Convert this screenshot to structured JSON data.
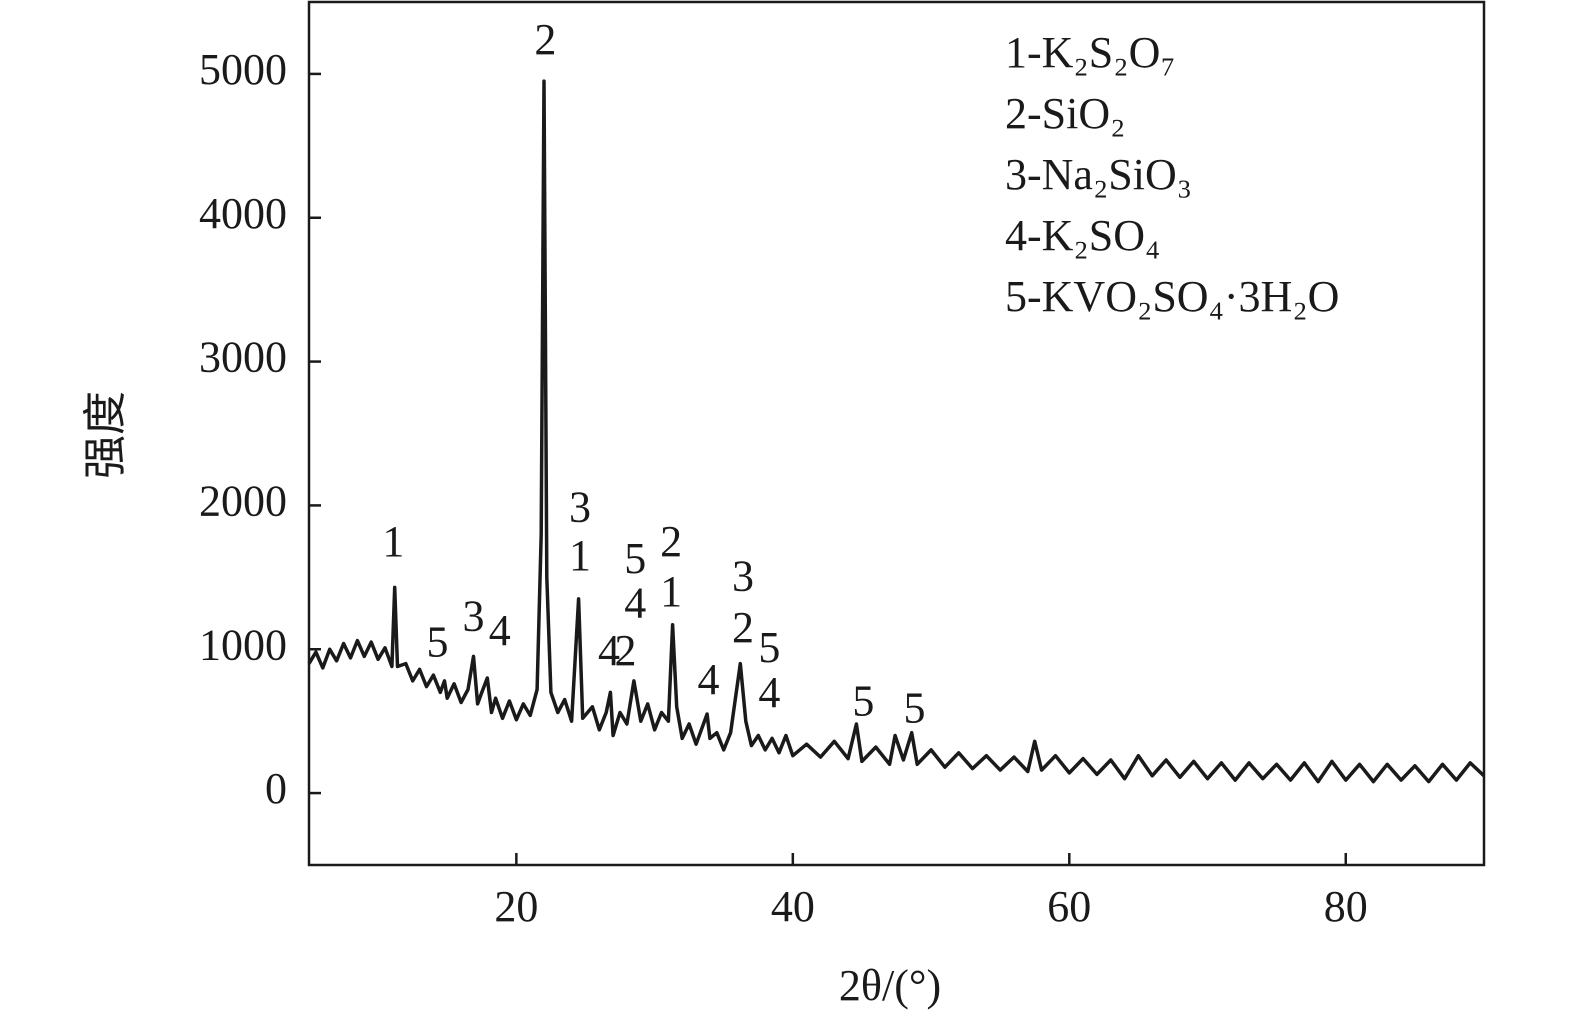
{
  "chart_data": {
    "type": "line",
    "x_label": "2θ/(°)",
    "y_label": "强度",
    "x": [
      5.0,
      5.5,
      6.0,
      6.5,
      7.0,
      7.5,
      8.0,
      8.5,
      9.0,
      9.5,
      10.0,
      10.5,
      11.0,
      11.2,
      11.4,
      12.0,
      12.5,
      13.0,
      13.5,
      14.0,
      14.5,
      14.8,
      15.0,
      15.5,
      16.0,
      16.5,
      16.9,
      17.2,
      17.5,
      17.9,
      18.2,
      18.5,
      19.0,
      19.5,
      20.0,
      20.5,
      21.0,
      21.5,
      21.8,
      22.0,
      22.2,
      22.5,
      23.0,
      23.5,
      24.0,
      24.5,
      24.8,
      25.5,
      26.0,
      26.5,
      26.8,
      27.0,
      27.5,
      28.0,
      28.5,
      29.0,
      29.5,
      30.0,
      30.5,
      31.0,
      31.3,
      31.6,
      32.0,
      32.5,
      33.0,
      33.8,
      34.0,
      34.5,
      35.0,
      35.5,
      36.2,
      36.6,
      37.0,
      37.5,
      38.0,
      38.5,
      39.0,
      39.5,
      40.0,
      41.0,
      42.0,
      43.0,
      44.0,
      44.6,
      45.0,
      46.0,
      47.0,
      47.4,
      48.0,
      48.6,
      49.0,
      50.0,
      51.0,
      52.0,
      53.0,
      54.0,
      55.0,
      56.0,
      57.0,
      57.5,
      58.0,
      59.0,
      60.0,
      61.0,
      62.0,
      63.0,
      64.0,
      65.0,
      66.0,
      67.0,
      68.0,
      69.0,
      70.0,
      71.0,
      72.0,
      73.0,
      74.0,
      75.0,
      76.0,
      77.0,
      78.0,
      79.0,
      80.0,
      81.0,
      82.0,
      83.0,
      84.0,
      85.0,
      86.0,
      87.0,
      88.0,
      89.0,
      90.0
    ],
    "values": [
      900,
      980,
      870,
      1000,
      920,
      1040,
      940,
      1060,
      950,
      1050,
      930,
      1010,
      880,
      1430,
      880,
      900,
      780,
      860,
      740,
      820,
      700,
      780,
      660,
      760,
      630,
      720,
      950,
      620,
      700,
      800,
      560,
      660,
      520,
      640,
      510,
      620,
      540,
      720,
      1800,
      4950,
      1500,
      700,
      560,
      650,
      500,
      1350,
      520,
      600,
      440,
      560,
      700,
      400,
      560,
      480,
      780,
      500,
      620,
      440,
      560,
      500,
      1170,
      600,
      380,
      480,
      340,
      550,
      380,
      420,
      300,
      420,
      900,
      500,
      330,
      400,
      300,
      380,
      280,
      400,
      260,
      340,
      250,
      360,
      240,
      480,
      220,
      320,
      200,
      400,
      230,
      420,
      200,
      300,
      180,
      280,
      170,
      260,
      160,
      250,
      150,
      360,
      160,
      260,
      140,
      240,
      130,
      230,
      100,
      260,
      120,
      230,
      110,
      220,
      100,
      210,
      90,
      210,
      100,
      200,
      90,
      210,
      80,
      220,
      90,
      200,
      80,
      200,
      90,
      190,
      80,
      200,
      90,
      210,
      120
    ],
    "color": "#1a1a1a",
    "xlim": [
      5,
      90
    ],
    "ylim": [
      -500,
      5500
    ],
    "xticks": [
      20,
      40,
      60,
      80
    ],
    "yticks": [
      0,
      1000,
      2000,
      3000,
      4000,
      5000
    ],
    "grid": false,
    "legend": [
      "1-K₂S₂O₇",
      "2-SiO₂",
      "3-Na₂SiO₃",
      "4-K₂SO₄",
      "5-KVO₂SO₄·3H₂O"
    ],
    "legend_loc": "upper right",
    "annotations": [
      {
        "text": "1",
        "x": 11.1,
        "y": 1720
      },
      {
        "text": "5",
        "x": 14.3,
        "y": 1020
      },
      {
        "text": "3",
        "x": 16.9,
        "y": 1200
      },
      {
        "text": "4",
        "x": 18.8,
        "y": 1100
      },
      {
        "text": "2",
        "x": 22.1,
        "y": 5210
      },
      {
        "text": "3",
        "x": 24.6,
        "y": 1960
      },
      {
        "text": "1",
        "x": 24.6,
        "y": 1620
      },
      {
        "text": "4",
        "x": 26.7,
        "y": 960
      },
      {
        "text": "2",
        "x": 27.9,
        "y": 960
      },
      {
        "text": "4",
        "x": 28.6,
        "y": 1290
      },
      {
        "text": "5",
        "x": 28.6,
        "y": 1600
      },
      {
        "text": "2",
        "x": 31.2,
        "y": 1720
      },
      {
        "text": "1",
        "x": 31.2,
        "y": 1370
      },
      {
        "text": "4",
        "x": 33.9,
        "y": 760
      },
      {
        "text": "3",
        "x": 36.4,
        "y": 1480
      },
      {
        "text": "2",
        "x": 36.4,
        "y": 1120
      },
      {
        "text": "5",
        "x": 38.3,
        "y": 980
      },
      {
        "text": "4",
        "x": 38.3,
        "y": 670
      },
      {
        "text": "5",
        "x": 45.1,
        "y": 610
      },
      {
        "text": "5",
        "x": 48.8,
        "y": 560
      }
    ]
  }
}
